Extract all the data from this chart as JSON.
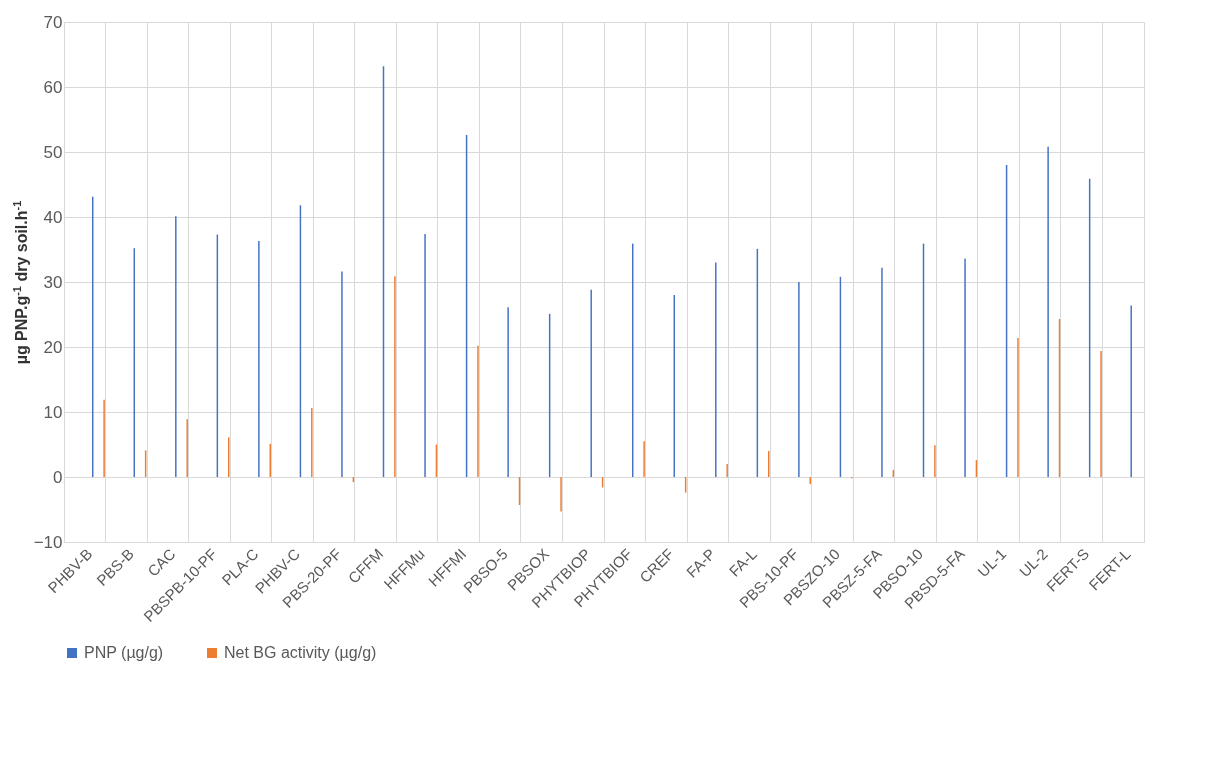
{
  "chart_data": {
    "type": "bar",
    "ylabel": "µg PNP.g$^{-1}$ dry soil.h$^{-1}$",
    "categories": [
      "PHBV-B",
      "PBS-B",
      "CAC",
      "PBSPB-10-PF",
      "PLA-C",
      "PHBV-C",
      "PBS-20-PF",
      "CFFM",
      "HFFMu",
      "HFFMI",
      "PBSO-5",
      "PBSOX",
      "PHYTBIOP",
      "PHYTBIOF",
      "CREF",
      "FA-P",
      "FA-L",
      "PBS-10-PF",
      "PBSZO-10",
      "PBSZ-5-FA",
      "PBSO-10",
      "PBSD-5-FA",
      "UL-1",
      "UL-2",
      "FERT-S",
      "FERT-L"
    ],
    "series": [
      {
        "name": "PNP (µg/g)",
        "color": "#4472c4",
        "values": [
          43.1,
          35.2,
          40.1,
          37.3,
          36.3,
          41.8,
          31.6,
          63.2,
          37.4,
          52.6,
          26.1,
          25.1,
          28.8,
          35.9,
          28.0,
          33.0,
          35.1,
          30.0,
          30.8,
          32.2,
          35.9,
          33.6,
          48.0,
          50.8,
          45.9,
          26.4
        ]
      },
      {
        "name": "Net BG activity (µg/g)",
        "color": "#ed7d31",
        "values": [
          11.9,
          4.1,
          8.9,
          6.1,
          5.1,
          10.6,
          -0.8,
          30.9,
          5.0,
          20.2,
          -4.3,
          -5.3,
          -1.6,
          5.5,
          -2.4,
          2.0,
          4.0,
          -1.1,
          -0.2,
          1.1,
          4.9,
          2.6,
          21.4,
          24.3,
          19.4,
          null
        ]
      }
    ],
    "ylim": [
      -10,
      70
    ],
    "yticks": [
      -10,
      0,
      10,
      20,
      30,
      40,
      50,
      60,
      70
    ],
    "grid": true,
    "legend": "bottom"
  }
}
